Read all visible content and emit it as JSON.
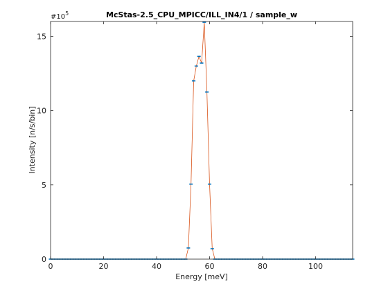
{
  "chart_data": {
    "type": "line",
    "title": "McStas-2.5_CPU_MPICC/ILL_IN4/1 / sample_w",
    "xlabel": "Energy [meV]",
    "ylabel": "Intensity [n/s/bin]",
    "y_multiplier_label": "#10",
    "y_multiplier_exponent": "5",
    "xlim": [
      0,
      114
    ],
    "ylim": [
      0,
      16
    ],
    "x_ticks": [
      0,
      20,
      40,
      60,
      80,
      100
    ],
    "x_tick_labels": [
      "0",
      "20",
      "40",
      "60",
      "80",
      "100"
    ],
    "y_ticks": [
      0,
      5,
      10,
      15
    ],
    "y_tick_labels": [
      "0",
      "5",
      "10",
      "15"
    ],
    "grid": false,
    "series": [
      {
        "line_color": "#d95319",
        "marker_color": "#0072bd",
        "x": [
          0,
          1,
          2,
          3,
          4,
          5,
          6,
          7,
          8,
          9,
          10,
          11,
          12,
          13,
          14,
          15,
          16,
          17,
          18,
          19,
          20,
          21,
          22,
          23,
          24,
          25,
          26,
          27,
          28,
          29,
          30,
          31,
          32,
          33,
          34,
          35,
          36,
          37,
          38,
          39,
          40,
          41,
          42,
          43,
          44,
          45,
          46,
          47,
          48,
          49,
          50,
          51,
          52,
          53,
          54,
          55,
          56,
          57,
          58,
          59,
          60,
          61,
          62,
          63,
          64,
          65,
          66,
          67,
          68,
          69,
          70,
          71,
          72,
          73,
          74,
          75,
          76,
          77,
          78,
          79,
          80,
          81,
          82,
          83,
          84,
          85,
          86,
          87,
          88,
          89,
          90,
          91,
          92,
          93,
          94,
          95,
          96,
          97,
          98,
          99,
          100,
          101,
          102,
          103,
          104,
          105,
          106,
          107,
          108,
          109,
          110,
          111,
          112,
          113,
          114
        ],
        "y": [
          0,
          0,
          0,
          0,
          0,
          0,
          0,
          0,
          0,
          0,
          0,
          0,
          0,
          0,
          0,
          0,
          0,
          0,
          0,
          0,
          0,
          0,
          0,
          0,
          0,
          0,
          0,
          0,
          0,
          0,
          0,
          0,
          0,
          0,
          0,
          0,
          0,
          0,
          0,
          0,
          0,
          0,
          0,
          0,
          0,
          0,
          0,
          0,
          0,
          0,
          0,
          0,
          0.75,
          5.05,
          12.0,
          13.0,
          13.65,
          13.2,
          15.95,
          11.25,
          5.05,
          0.7,
          0,
          0,
          0,
          0,
          0,
          0,
          0,
          0,
          0,
          0,
          0,
          0,
          0,
          0,
          0,
          0,
          0,
          0,
          0,
          0,
          0,
          0,
          0,
          0,
          0,
          0,
          0,
          0,
          0,
          0,
          0,
          0,
          0,
          0,
          0,
          0,
          0,
          0,
          0,
          0,
          0,
          0,
          0,
          0,
          0,
          0,
          0,
          0,
          0,
          0,
          0,
          0,
          0
        ]
      }
    ]
  }
}
